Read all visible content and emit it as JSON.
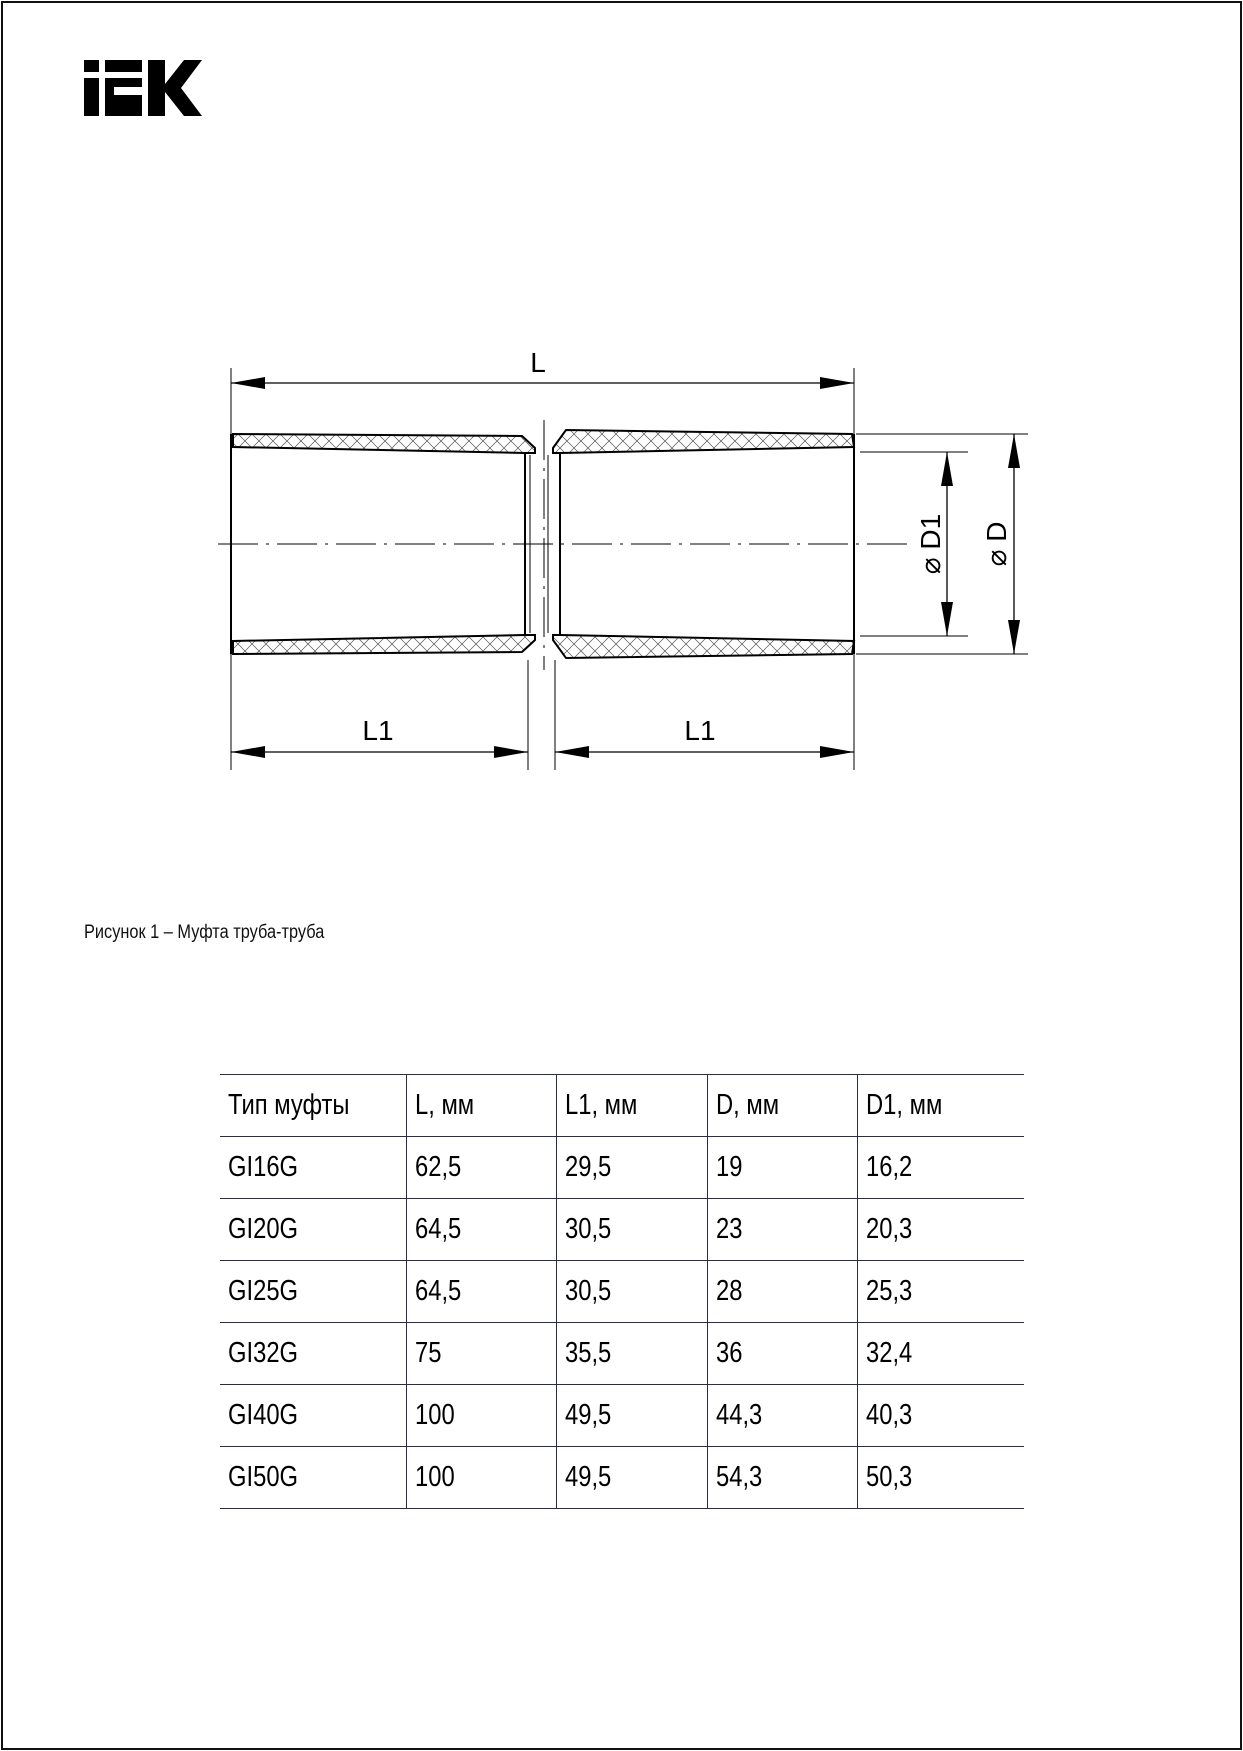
{
  "logo": {
    "text": "IEK"
  },
  "drawing": {
    "labels": {
      "L": "L",
      "L1_left": "L1",
      "L1_right": "L1",
      "D1": "⌀ D1",
      "D": "⌀ D"
    }
  },
  "caption": "Рисунок 1 – Муфта труба-труба",
  "table": {
    "headers": [
      "Тип муфты",
      "L, мм",
      "L1, мм",
      "D, мм",
      "D1, мм"
    ],
    "rows": [
      [
        "GI16G",
        "62,5",
        "29,5",
        "19",
        "16,2"
      ],
      [
        "GI20G",
        "64,5",
        "30,5",
        "23",
        "20,3"
      ],
      [
        "GI25G",
        "64,5",
        "30,5",
        "28",
        "25,3"
      ],
      [
        "GI32G",
        "75",
        "35,5",
        "36",
        "32,4"
      ],
      [
        "GI40G",
        "100",
        "49,5",
        "44,3",
        "40,3"
      ],
      [
        "GI50G",
        "100",
        "49,5",
        "54,3",
        "50,3"
      ]
    ]
  }
}
